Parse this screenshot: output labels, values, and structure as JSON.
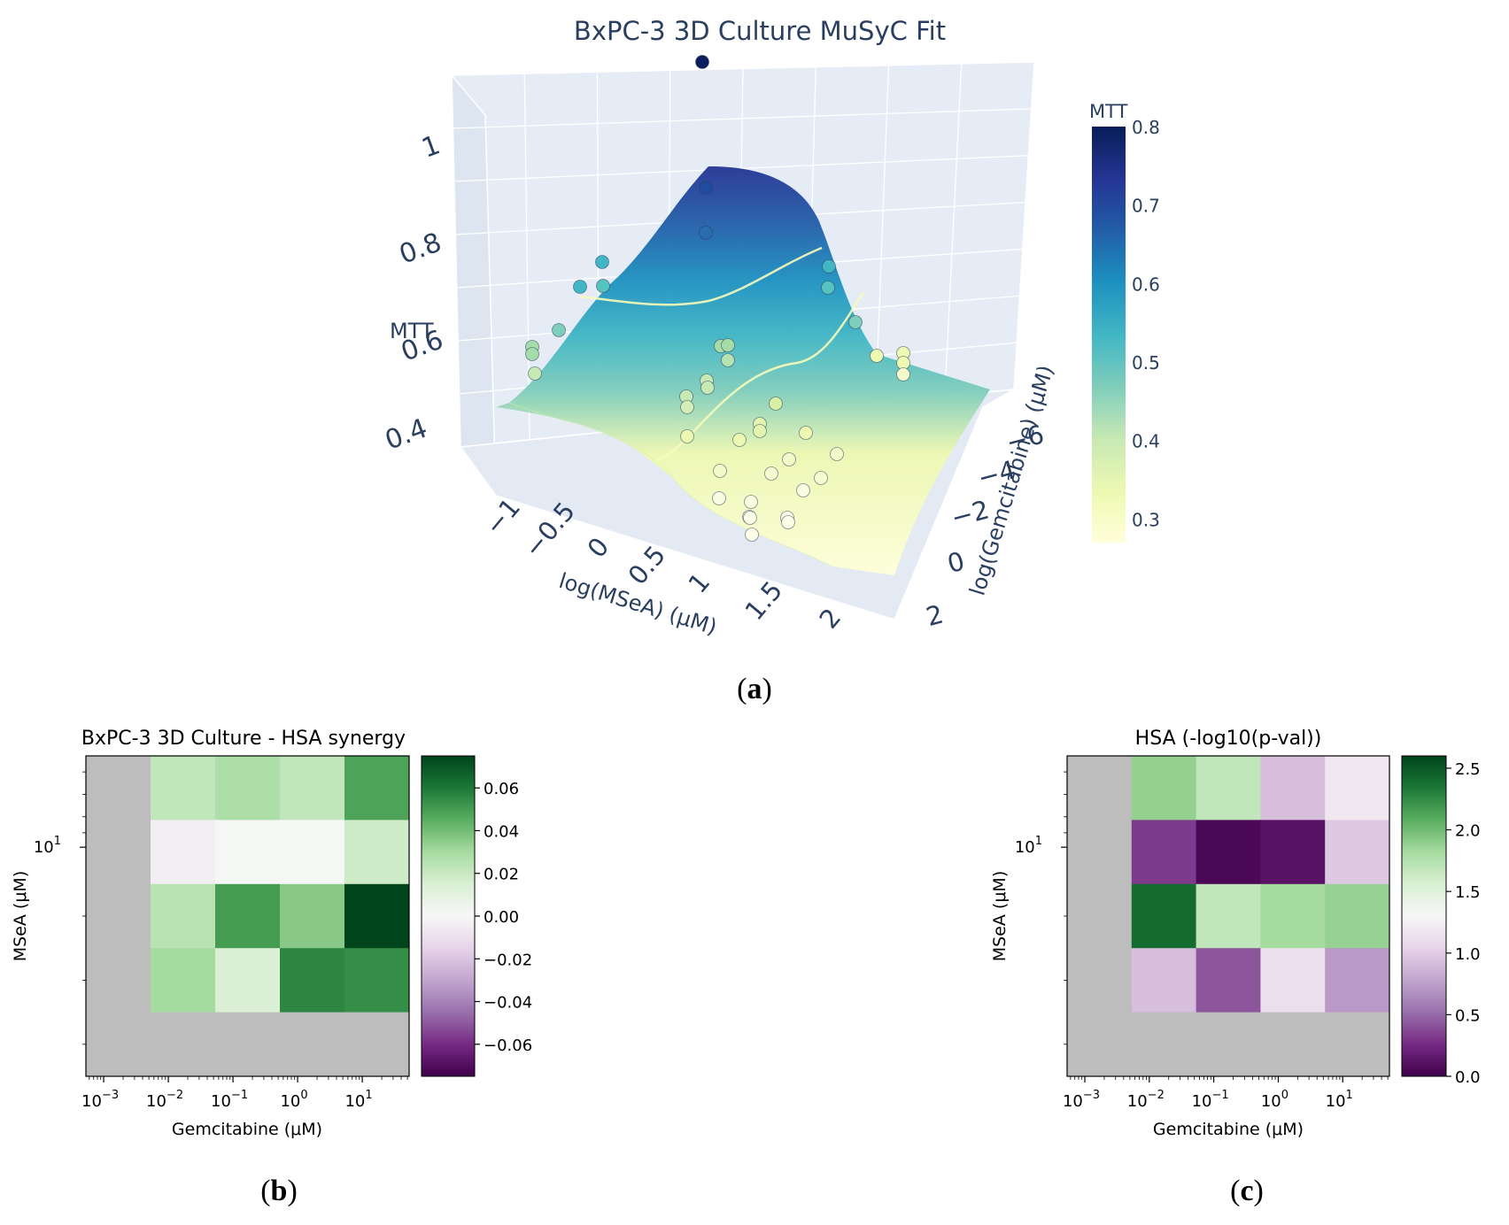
{
  "chart_data": [
    {
      "id": "a",
      "type": "scatter",
      "subtype": "3d-surface-with-points",
      "title": "BxPC-3 3D Culture MuSyC Fit",
      "panel_label": "a",
      "xlabel": "log(MSeA) (μM)",
      "ylabel": "log(Gemcitabine) (μM)",
      "zlabel": "MTT",
      "x_ticks": [
        "−1",
        "−0.5",
        "0",
        "0.5",
        "1",
        "1.5",
        "2"
      ],
      "y_ticks": [
        "−6",
        "−4",
        "−2",
        "0",
        "2"
      ],
      "z_ticks": [
        "0.4",
        "0.6",
        "0.8",
        "1"
      ],
      "colorbar": {
        "title": "MTT",
        "range": [
          0.27,
          0.8
        ],
        "ticks": [
          "0.8",
          "0.7",
          "0.6",
          "0.5",
          "0.4",
          "0.3"
        ],
        "colormap": [
          "#ffffd9",
          "#edf8b1",
          "#c7e9b4",
          "#7fcdbb",
          "#41b6c4",
          "#1d91c0",
          "#225ea8",
          "#253494",
          "#081d58"
        ]
      }
    },
    {
      "id": "b",
      "type": "heatmap",
      "title": "BxPC-3 3D Culture - HSA synergy",
      "panel_label": "b",
      "xlabel": "Gemcitabine (μM)",
      "ylabel": "MSeA (μM)",
      "x_ticks": [
        "10",
        "10",
        "10",
        "10",
        "10"
      ],
      "x_exps": [
        "−3",
        "−2",
        "−1",
        "0",
        "1"
      ],
      "y_tick": "10",
      "y_exp": "1",
      "clim": [
        -0.075,
        0.075
      ],
      "colorbar_ticks": [
        "0.06",
        "0.04",
        "0.02",
        "0.00",
        "−0.02",
        "−0.04",
        "−0.06"
      ],
      "colorbar_values": [
        0.06,
        0.04,
        0.02,
        0.0,
        -0.02,
        -0.04,
        -0.06
      ],
      "colormap": "PRGn",
      "masked_color": "#bdbdbd",
      "values": [
        [
          null,
          0.022,
          0.028,
          0.022,
          0.048
        ],
        [
          null,
          -0.004,
          0.001,
          0.001,
          0.018
        ],
        [
          null,
          0.024,
          0.05,
          0.036,
          0.075
        ],
        [
          null,
          0.03,
          0.014,
          0.056,
          0.054
        ],
        [
          null,
          null,
          null,
          null,
          null
        ]
      ]
    },
    {
      "id": "c",
      "type": "heatmap",
      "title": "HSA (-log10(p-val))",
      "panel_label": "c",
      "xlabel": "Gemcitabine (μM)",
      "ylabel": "MSeA (μM)",
      "x_ticks": [
        "10",
        "10",
        "10",
        "10",
        "10"
      ],
      "x_exps": [
        "−3",
        "−2",
        "−1",
        "0",
        "1"
      ],
      "y_tick": "10",
      "y_exp": "1",
      "clim": [
        0,
        2.6
      ],
      "colorbar_ticks": [
        "2.5",
        "2.0",
        "1.5",
        "1.0",
        "0.5",
        "0.0"
      ],
      "colorbar_values": [
        2.5,
        2.0,
        1.5,
        1.0,
        0.5,
        0.0
      ],
      "colormap": "PRGn",
      "masked_color": "#bdbdbd",
      "values": [
        [
          null,
          1.88,
          1.68,
          0.92,
          1.18
        ],
        [
          null,
          0.32,
          0.05,
          0.12,
          0.98
        ],
        [
          null,
          2.4,
          1.68,
          1.82,
          1.87
        ],
        [
          null,
          0.92,
          0.42,
          1.12,
          0.72
        ],
        [
          null,
          null,
          null,
          null,
          null
        ]
      ]
    }
  ]
}
